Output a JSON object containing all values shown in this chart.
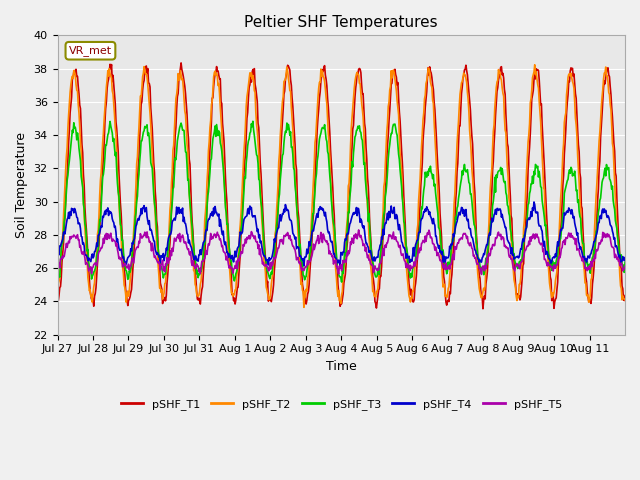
{
  "title": "Peltier SHF Temperatures",
  "xlabel": "Time",
  "ylabel": "Soil Temperature",
  "ylim": [
    22,
    40
  ],
  "n_days": 16,
  "xtick_labels": [
    "Jul 27",
    "Jul 28",
    "Jul 29",
    "Jul 30",
    "Jul 31",
    "Aug 1",
    "Aug 2",
    "Aug 3",
    "Aug 4",
    "Aug 5",
    "Aug 6",
    "Aug 7",
    "Aug 8",
    "Aug 9",
    "Aug 10",
    "Aug 11"
  ],
  "series_colors": {
    "pSHF_T1": "#cc0000",
    "pSHF_T2": "#ff8800",
    "pSHF_T3": "#00cc00",
    "pSHF_T4": "#0000cc",
    "pSHF_T5": "#aa00aa"
  },
  "legend_label": "VR_met",
  "background_color": "#f0f0f0",
  "plot_bg_color": "#e8e8e8",
  "linewidth": 1.2
}
